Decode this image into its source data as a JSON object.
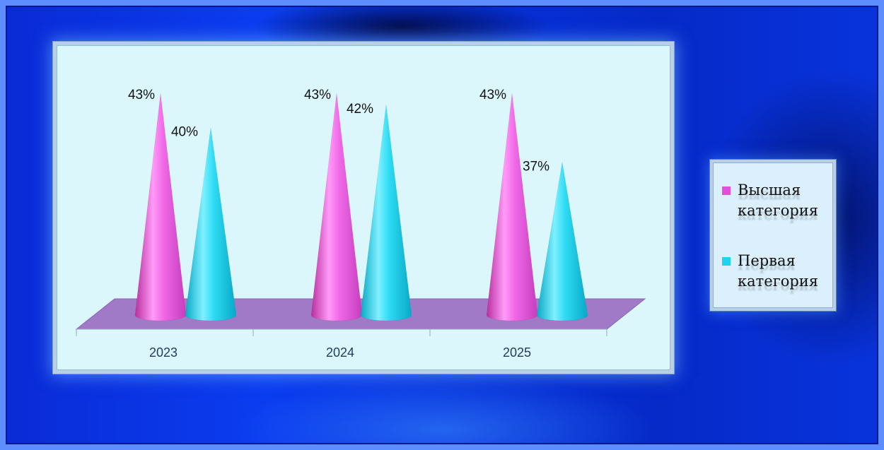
{
  "chart_data": {
    "type": "bar",
    "style": "3d-cone",
    "categories": [
      "2023",
      "2024",
      "2025"
    ],
    "series": [
      {
        "name": "Высшая категория",
        "values": [
          43,
          43,
          43
        ],
        "labels": [
          "43%",
          "43%",
          "43%"
        ],
        "color": "#e24fdc"
      },
      {
        "name": "Первая категория",
        "values": [
          40,
          42,
          37
        ],
        "labels": [
          "40%",
          "42%",
          "37%"
        ],
        "color": "#1fd2ee"
      }
    ],
    "unit": "%",
    "title": "",
    "xlabel": "",
    "ylabel": "",
    "ylim": [
      30,
      43
    ],
    "grid": false,
    "legend_position": "right",
    "colors": {
      "floor": "#a07ac6",
      "plot_background": "#dbf7fc",
      "frame_background": "#0a36e6"
    }
  }
}
